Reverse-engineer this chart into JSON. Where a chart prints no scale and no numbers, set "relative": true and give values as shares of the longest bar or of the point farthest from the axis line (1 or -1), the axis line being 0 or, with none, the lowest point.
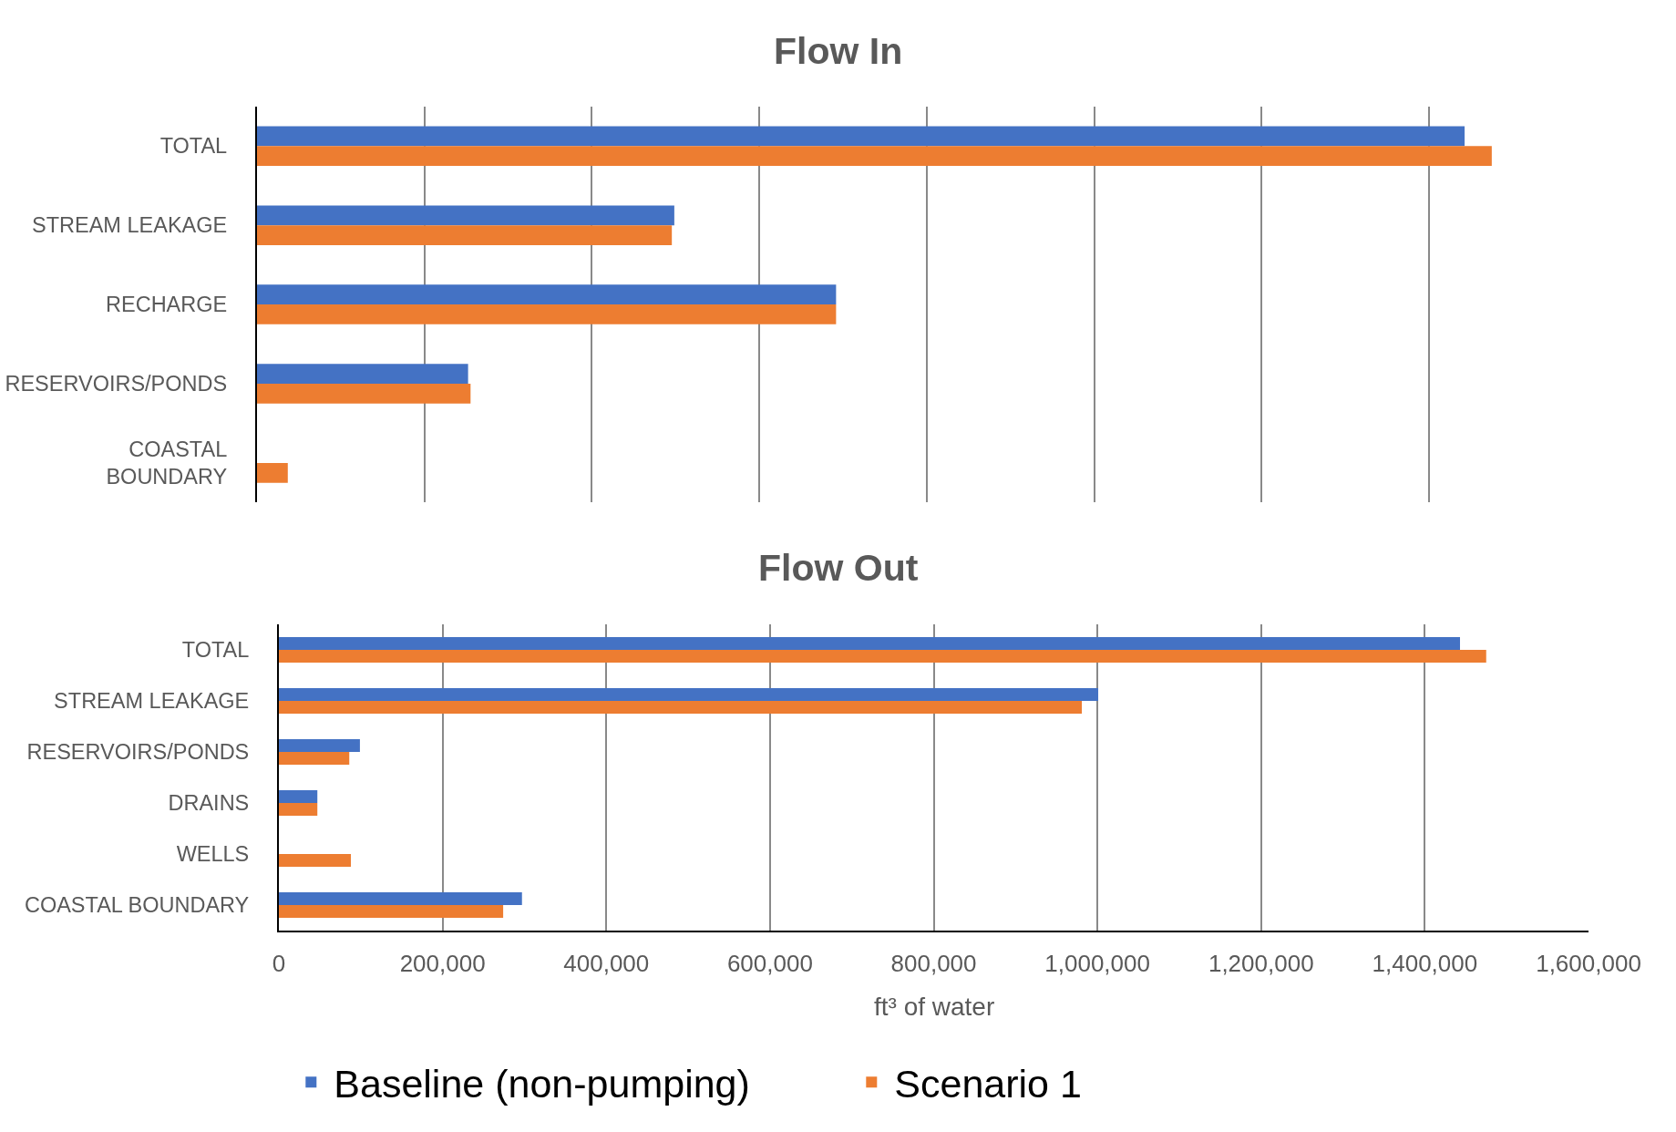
{
  "chart_data": [
    {
      "type": "bar",
      "title": "Flow In",
      "orientation": "horizontal",
      "relative": true,
      "categories": [
        "TOTAL",
        "STREAM LEAKAGE",
        "RECHARGE",
        "RESERVOIRS/PONDS",
        "COASTAL BOUNDARY"
      ],
      "series": [
        {
          "color": "#4472c4",
          "values": [
            0.978,
            0.338,
            0.469,
            0.171,
            null
          ]
        },
        {
          "color": "#ed7d31",
          "values": [
            1,
            0.336,
            0.469,
            0.173,
            0.025
          ]
        }
      ],
      "grid": "x"
    },
    {
      "type": "bar",
      "title": "Flow Out",
      "orientation": "horizontal",
      "xlabel": "ft³ of water",
      "categories": [
        "TOTAL",
        "STREAM LEAKAGE",
        "RESERVOIRS/PONDS",
        "DRAINS",
        "WELLS",
        "COASTAL BOUNDARY"
      ],
      "series": [
        {
          "name": "Baseline (non-pumping)",
          "color": "#4472c4",
          "values": [
            1443000,
            1001000,
            99000,
            47000,
            null,
            297000
          ]
        },
        {
          "name": "Scenario 1",
          "color": "#ed7d31",
          "values": [
            1475000,
            981000,
            86000,
            47000,
            88000,
            274000
          ]
        }
      ],
      "xlim": [
        0,
        1600000
      ],
      "xticks": [
        {
          "value": 0,
          "label": "0"
        },
        {
          "value": 200000,
          "label": "200,000"
        },
        {
          "value": 400000,
          "label": "400,000"
        },
        {
          "value": 600000,
          "label": "600,000"
        },
        {
          "value": 800000,
          "label": "800,000"
        },
        {
          "value": 1000000,
          "label": "1,000,000"
        },
        {
          "value": 1200000,
          "label": "1,200,000"
        },
        {
          "value": 1400000,
          "label": "1,400,000"
        },
        {
          "value": 1600000,
          "label": "1,600,000"
        }
      ],
      "grid": "x",
      "legend": "bottom"
    }
  ]
}
